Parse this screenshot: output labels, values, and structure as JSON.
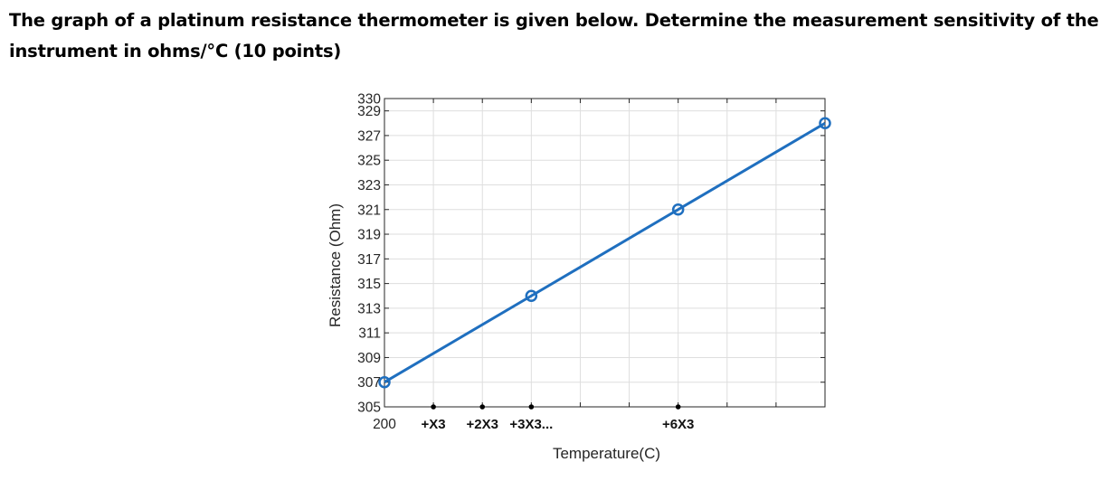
{
  "question": {
    "line1": "The graph of a platinum resistance thermometer is given below.  Determine the measurement sensitivity of the",
    "line2": "instrument in ohms/°C (10 points)"
  },
  "chart_data": {
    "type": "line",
    "title": "",
    "xlabel": "Temperature(C)",
    "ylabel": "Resistance (Ohm)",
    "ylim": [
      305,
      330
    ],
    "xlim": [
      0,
      9
    ],
    "yticks": [
      305,
      307,
      309,
      311,
      313,
      315,
      317,
      319,
      321,
      323,
      325,
      327,
      329,
      330
    ],
    "x_tick_labels": [
      {
        "x": 0,
        "label": "200"
      },
      {
        "x": 1,
        "label": "+X3"
      },
      {
        "x": 2,
        "label": "+2X3"
      },
      {
        "x": 3,
        "label": "+3X3..."
      },
      {
        "x": 6,
        "label": "+6X3"
      }
    ],
    "handwritten_dot_ticks": [
      1,
      2,
      3,
      6
    ],
    "grid": true,
    "series": [
      {
        "color": "#1f6fbf",
        "marker": "circle",
        "x": [
          0,
          3,
          6,
          9
        ],
        "y": [
          307,
          314,
          321,
          328
        ]
      }
    ]
  }
}
